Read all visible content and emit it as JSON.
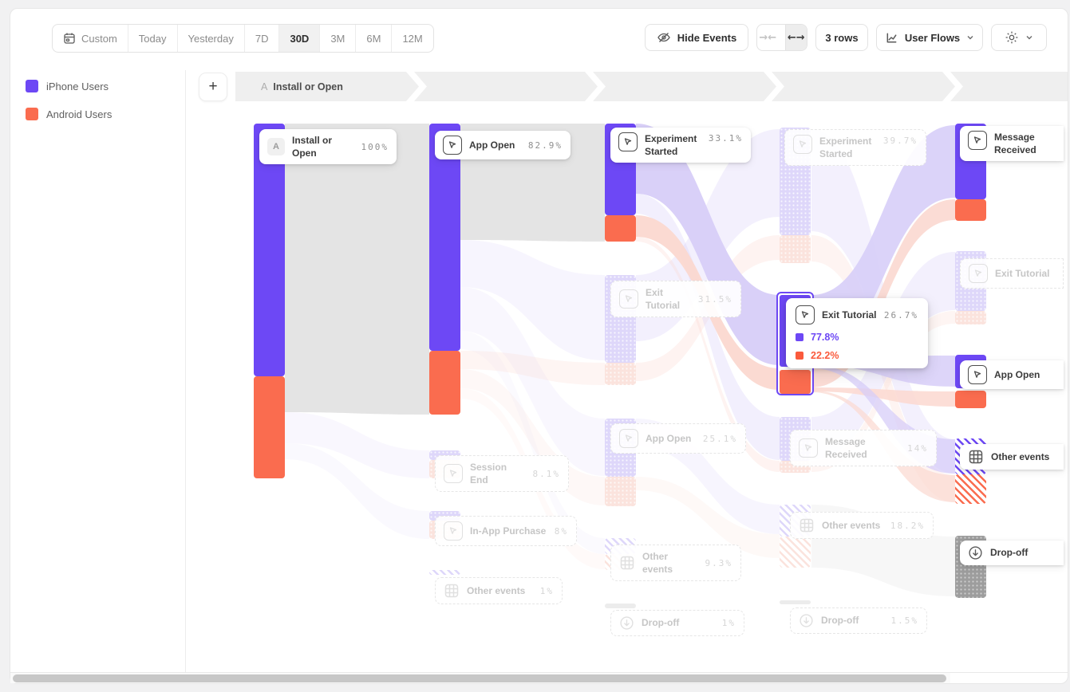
{
  "toolbar": {
    "date_ranges": [
      {
        "label": "Custom",
        "icon": "calendar-icon",
        "active": false
      },
      {
        "label": "Today",
        "active": false
      },
      {
        "label": "Yesterday",
        "active": false
      },
      {
        "label": "7D",
        "active": false
      },
      {
        "label": "30D",
        "active": true
      },
      {
        "label": "3M",
        "active": false
      },
      {
        "label": "6M",
        "active": false
      },
      {
        "label": "12M",
        "active": false
      }
    ],
    "hide_events_label": "Hide Events",
    "collapse_icon": "collapse-arrows-icon",
    "expand_icon": "expand-arrows-icon",
    "rows_label": "3 rows",
    "view_label": "User Flows",
    "view_icon": "flow-chart-icon",
    "settings_icon": "gear-icon"
  },
  "legend": {
    "items": [
      {
        "label": "iPhone Users",
        "color": "#6d48f5"
      },
      {
        "label": "Android Users",
        "color": "#fa6c4f"
      }
    ]
  },
  "breadcrumb": {
    "badge": "A",
    "label": "Install or Open"
  },
  "chart_data": {
    "type": "sankey",
    "title": "User Flows starting from Install or Open",
    "series": [
      {
        "name": "iPhone Users",
        "color": "#6d48f5"
      },
      {
        "name": "Android Users",
        "color": "#fa6c4f"
      }
    ],
    "columns": [
      {
        "step": 1,
        "nodes": [
          {
            "id": "install_open",
            "label": "Install or Open",
            "badge": "A",
            "pct": "100%",
            "state": "bright",
            "kind": "start"
          }
        ]
      },
      {
        "step": 2,
        "nodes": [
          {
            "id": "app_open2",
            "label": "App Open",
            "pct": "82.9%",
            "state": "bright",
            "kind": "event"
          },
          {
            "id": "session_end2",
            "label": "Session End",
            "pct": "8.1%",
            "state": "faded",
            "kind": "event"
          },
          {
            "id": "iap2",
            "label": "In-App Purchase",
            "pct": "8%",
            "state": "faded",
            "kind": "event"
          },
          {
            "id": "other2",
            "label": "Other events",
            "pct": "1%",
            "state": "faded",
            "kind": "other"
          }
        ]
      },
      {
        "step": 3,
        "nodes": [
          {
            "id": "exp3",
            "label": "Experiment Started",
            "pct": "33.1%",
            "state": "bright",
            "kind": "event"
          },
          {
            "id": "exit3",
            "label": "Exit Tutorial",
            "pct": "31.5%",
            "state": "faded",
            "kind": "event"
          },
          {
            "id": "appopen3",
            "label": "App Open",
            "pct": "25.1%",
            "state": "faded",
            "kind": "event"
          },
          {
            "id": "other3",
            "label": "Other events",
            "pct": "9.3%",
            "state": "faded",
            "kind": "other"
          },
          {
            "id": "drop3",
            "label": "Drop-off",
            "pct": "1%",
            "state": "faded",
            "kind": "dropoff"
          }
        ]
      },
      {
        "step": 4,
        "nodes": [
          {
            "id": "exp4",
            "label": "Experiment Started",
            "pct": "39.7%",
            "state": "faded",
            "kind": "event"
          },
          {
            "id": "exit4",
            "label": "Exit Tutorial",
            "pct": "26.7%",
            "state": "hover",
            "kind": "event",
            "breakdown": [
              {
                "series": "iPhone Users",
                "pct": "77.8%",
                "color": "#6d48f5"
              },
              {
                "series": "Android Users",
                "pct": "22.2%",
                "color": "#fa5a3c"
              }
            ]
          },
          {
            "id": "msg4",
            "label": "Message Received",
            "pct": "14%",
            "state": "faded",
            "kind": "event"
          },
          {
            "id": "other4",
            "label": "Other events",
            "pct": "18.2%",
            "state": "faded",
            "kind": "other"
          },
          {
            "id": "drop4",
            "label": "Drop-off",
            "pct": "1.5%",
            "state": "faded",
            "kind": "dropoff"
          }
        ]
      },
      {
        "step": 5,
        "nodes": [
          {
            "id": "msg5",
            "label": "Message Received",
            "pct": "",
            "state": "bright",
            "kind": "event"
          },
          {
            "id": "exit5",
            "label": "Exit Tutorial",
            "pct": "",
            "state": "faded",
            "kind": "event"
          },
          {
            "id": "app5",
            "label": "App Open",
            "pct": "",
            "state": "bright",
            "kind": "event"
          },
          {
            "id": "other5",
            "label": "Other events",
            "pct": "",
            "state": "bright",
            "kind": "other"
          },
          {
            "id": "drop5",
            "label": "Drop-off",
            "pct": "",
            "state": "bright",
            "kind": "dropoff"
          }
        ]
      }
    ]
  }
}
